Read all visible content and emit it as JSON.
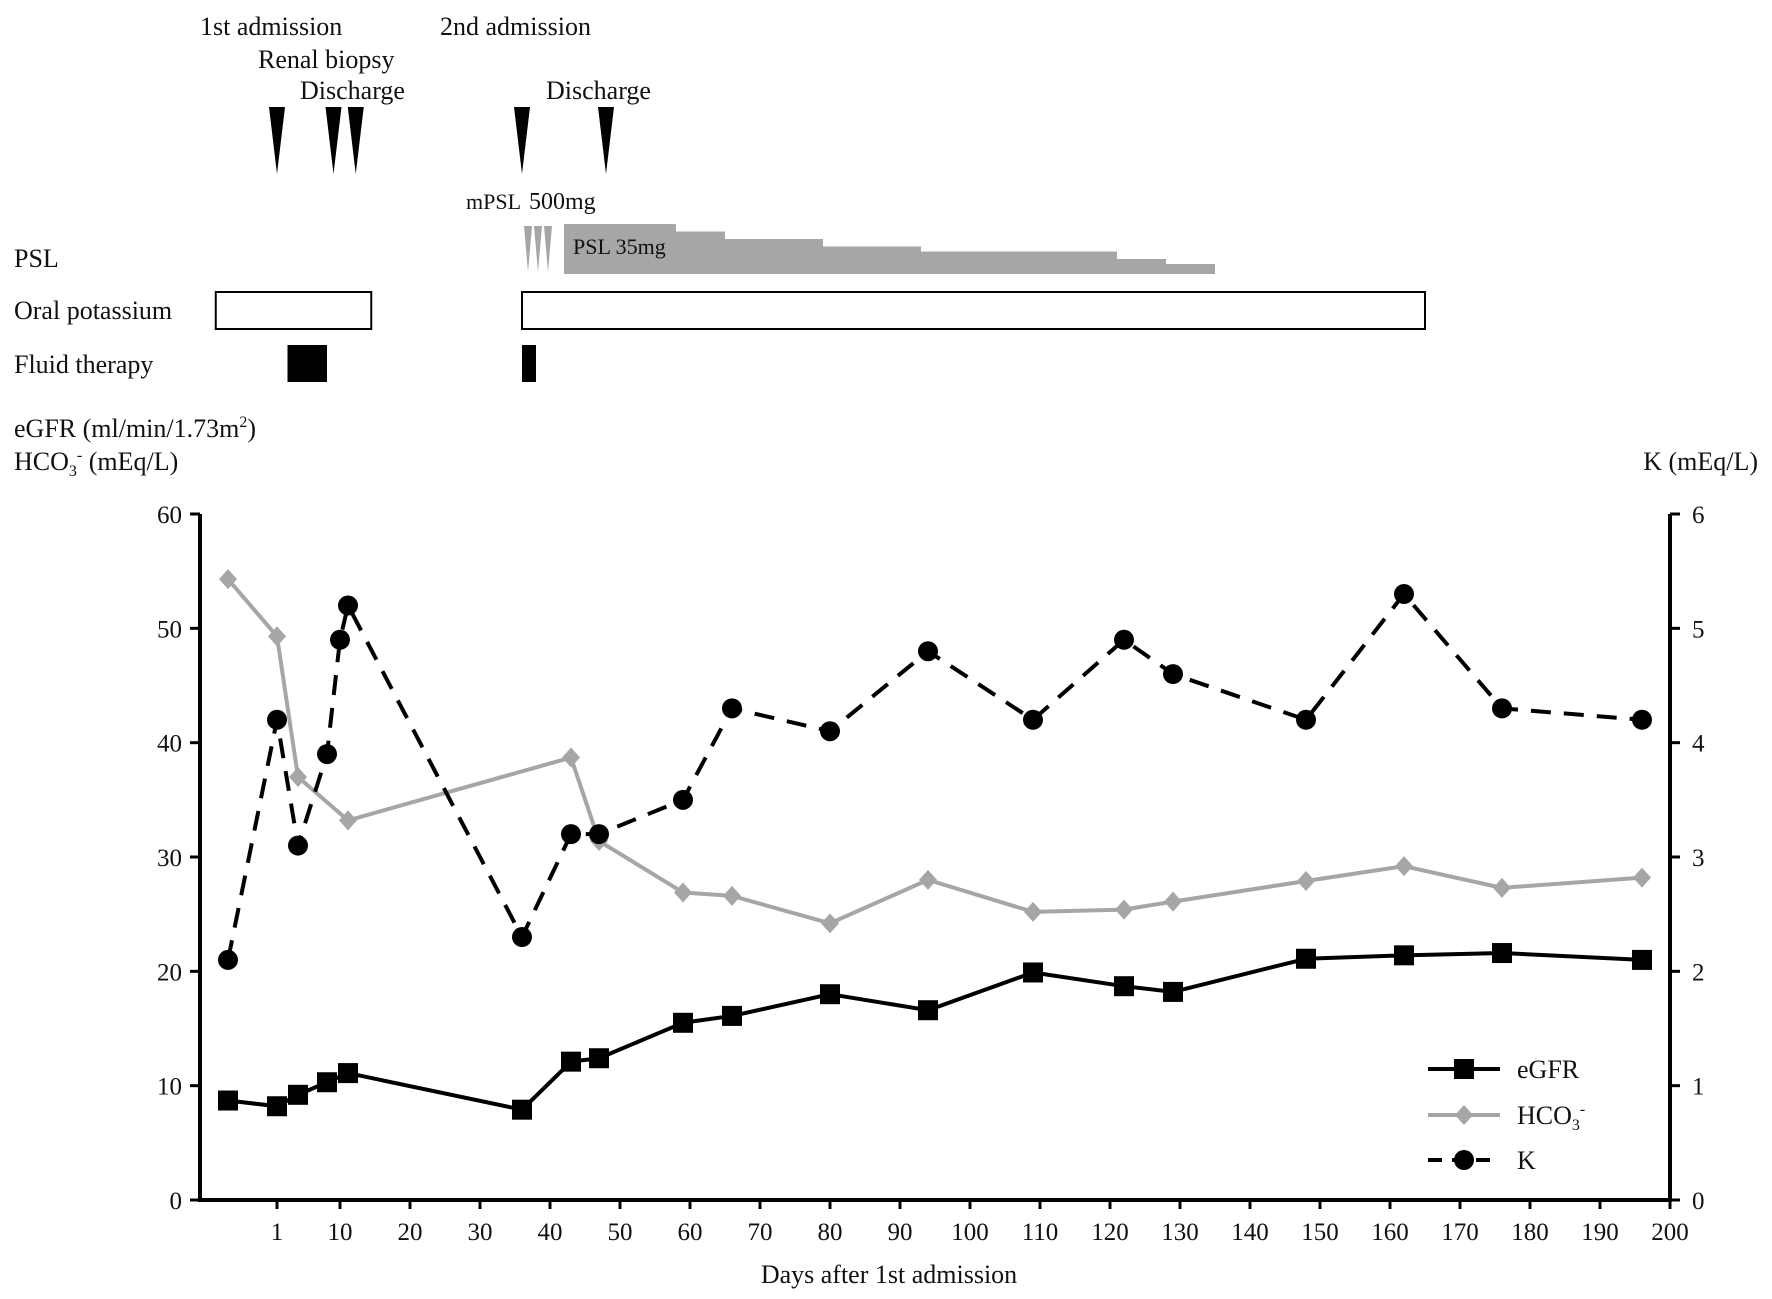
{
  "timeline": {
    "events": [
      {
        "label": "1st admission",
        "day": 1
      },
      {
        "label": "Renal biopsy",
        "day": 9
      },
      {
        "label": "Discharge",
        "day": 13
      },
      {
        "label": "2nd admission",
        "day": 36
      },
      {
        "label": "Discharge",
        "day": 48
      }
    ],
    "mpsl": {
      "prefix": "mPSL",
      "dose": "500mg",
      "doses": 3
    },
    "psl": {
      "label": "PSL",
      "start_dose_label": "PSL 35mg",
      "taper_steps": [
        {
          "from": 42,
          "to": 58,
          "level": 1.0
        },
        {
          "from": 58,
          "to": 65,
          "level": 0.85
        },
        {
          "from": 65,
          "to": 79,
          "level": 0.7
        },
        {
          "from": 79,
          "to": 93,
          "level": 0.55
        },
        {
          "from": 93,
          "to": 121,
          "level": 0.45
        },
        {
          "from": 121,
          "to": 128,
          "level": 0.3
        },
        {
          "from": 128,
          "to": 135,
          "level": 0.2
        }
      ]
    },
    "oral_potassium": {
      "label": "Oral potassium",
      "periods": [
        {
          "from": -1.5,
          "to": 15
        },
        {
          "from": 36,
          "to": 165
        }
      ]
    },
    "fluid_therapy": {
      "label": "Fluid therapy",
      "periods": [
        {
          "from": 2,
          "to": 8
        },
        {
          "from": 36,
          "to": 38
        }
      ]
    }
  },
  "chart_data": {
    "type": "line",
    "x": [
      -1,
      1,
      3,
      8,
      10,
      12,
      36,
      43,
      47,
      59,
      66,
      80,
      94,
      109,
      122,
      129,
      148,
      162,
      176,
      196
    ],
    "xticks": [
      "1",
      "10",
      "20",
      "30",
      "40",
      "50",
      "60",
      "70",
      "80",
      "90",
      "100",
      "110",
      "120",
      "130",
      "140",
      "150",
      "160",
      "170",
      "180",
      "190",
      "200"
    ],
    "xlabel": "Days after 1st admission",
    "left_axis": {
      "label_line1": "eGFR (ml/min/1.73m",
      "label_line1_sup": "2",
      "label_line1_end": ")",
      "label_line2": "HCO",
      "label_line2_sub": "3",
      "label_line2_sup": "-",
      "label_line2_end": " (mEq/L)",
      "ylim": [
        0,
        60
      ],
      "ticks": [
        "0",
        "10",
        "20",
        "30",
        "40",
        "50",
        "60"
      ]
    },
    "right_axis": {
      "label": "K (mEq/L)",
      "ylim": [
        0,
        6
      ],
      "ticks": [
        "0",
        "1",
        "2",
        "3",
        "4",
        "5",
        "6"
      ]
    },
    "series": [
      {
        "name": "eGFR",
        "axis": "left",
        "color": "#000000",
        "marker": "square",
        "dash": false,
        "points": [
          [
            -1,
            8.7
          ],
          [
            1,
            8.2
          ],
          [
            3,
            9.2
          ],
          [
            8,
            10.3
          ],
          [
            12,
            11.1
          ],
          [
            36,
            7.9
          ],
          [
            43,
            12.1
          ],
          [
            47,
            12.4
          ],
          [
            59,
            15.5
          ],
          [
            66,
            16.1
          ],
          [
            80,
            18
          ],
          [
            94,
            16.6
          ],
          [
            109,
            19.9
          ],
          [
            122,
            18.7
          ],
          [
            129,
            18.2
          ],
          [
            148,
            21.1
          ],
          [
            162,
            21.4
          ],
          [
            176,
            21.6
          ],
          [
            196,
            21
          ]
        ]
      },
      {
        "name": "HCO",
        "name_sub": "3",
        "name_sup": "-",
        "axis": "left",
        "color": "#a6a6a6",
        "marker": "diamond",
        "dash": false,
        "points": [
          [
            -1,
            54.3
          ],
          [
            1,
            49.3
          ],
          [
            3,
            37
          ],
          [
            12,
            33.2
          ],
          [
            43,
            38.7
          ],
          [
            47,
            31.4
          ],
          [
            59,
            26.9
          ],
          [
            66,
            26.6
          ],
          [
            80,
            24.2
          ],
          [
            94,
            28
          ],
          [
            109,
            25.2
          ],
          [
            122,
            25.4
          ],
          [
            129,
            26.1
          ],
          [
            148,
            27.9
          ],
          [
            162,
            29.2
          ],
          [
            176,
            27.3
          ],
          [
            196,
            28.2
          ]
        ]
      },
      {
        "name": "K",
        "axis": "right",
        "color": "#000000",
        "marker": "circle",
        "dash": true,
        "points": [
          [
            -1,
            2.1
          ],
          [
            1,
            4.2
          ],
          [
            3,
            3.1
          ],
          [
            8,
            3.9
          ],
          [
            10,
            4.9
          ],
          [
            12,
            5.2
          ],
          [
            36,
            2.3
          ],
          [
            43,
            3.2
          ],
          [
            47,
            3.2
          ],
          [
            59,
            3.5
          ],
          [
            66,
            4.3
          ],
          [
            80,
            4.1
          ],
          [
            94,
            4.8
          ],
          [
            109,
            4.2
          ],
          [
            122,
            4.9
          ],
          [
            129,
            4.6
          ],
          [
            148,
            4.2
          ],
          [
            162,
            5.3
          ],
          [
            176,
            4.3
          ],
          [
            196,
            4.2
          ]
        ]
      }
    ],
    "legend_position": "bottom-right",
    "grid": false
  }
}
